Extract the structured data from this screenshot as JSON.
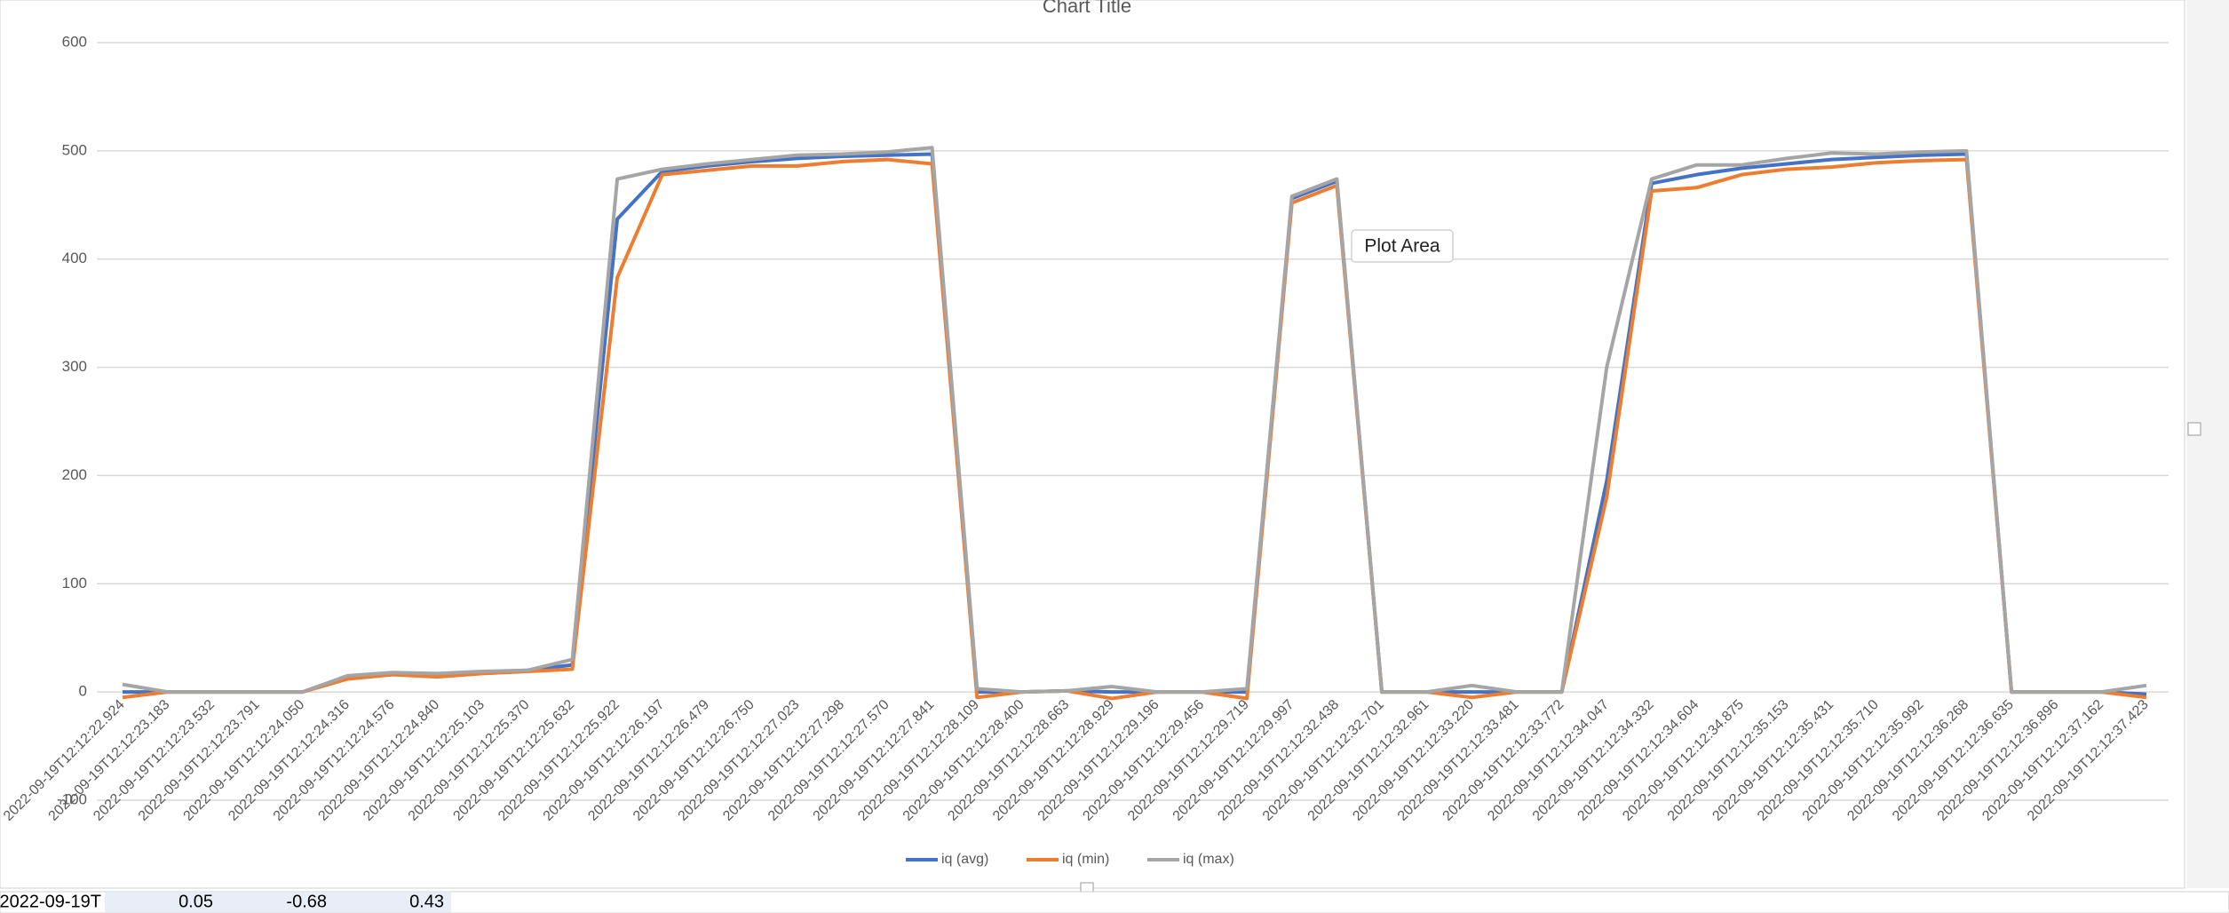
{
  "chart_data": {
    "type": "line",
    "title": "Chart Title",
    "categories": [
      "2022-09-19T12:12:22.924",
      "2022-09-19T12:12:23.183",
      "2022-09-19T12:12:23.532",
      "2022-09-19T12:12:23.791",
      "2022-09-19T12:12:24.050",
      "2022-09-19T12:12:24.316",
      "2022-09-19T12:12:24.576",
      "2022-09-19T12:12:24.840",
      "2022-09-19T12:12:25.103",
      "2022-09-19T12:12:25.370",
      "2022-09-19T12:12:25.632",
      "2022-09-19T12:12:25.922",
      "2022-09-19T12:12:26.197",
      "2022-09-19T12:12:26.479",
      "2022-09-19T12:12:26.750",
      "2022-09-19T12:12:27.023",
      "2022-09-19T12:12:27.298",
      "2022-09-19T12:12:27.570",
      "2022-09-19T12:12:27.841",
      "2022-09-19T12:12:28.109",
      "2022-09-19T12:12:28.400",
      "2022-09-19T12:12:28.663",
      "2022-09-19T12:12:28.929",
      "2022-09-19T12:12:29.196",
      "2022-09-19T12:12:29.456",
      "2022-09-19T12:12:29.719",
      "2022-09-19T12:12:29.997",
      "2022-09-19T12:12:32.438",
      "2022-09-19T12:12:32.701",
      "2022-09-19T12:12:32.961",
      "2022-09-19T12:12:33.220",
      "2022-09-19T12:12:33.481",
      "2022-09-19T12:12:33.772",
      "2022-09-19T12:12:34.047",
      "2022-09-19T12:12:34.332",
      "2022-09-19T12:12:34.604",
      "2022-09-19T12:12:34.875",
      "2022-09-19T12:12:35.153",
      "2022-09-19T12:12:35.431",
      "2022-09-19T12:12:35.710",
      "2022-09-19T12:12:35.992",
      "2022-09-19T12:12:36.268",
      "2022-09-19T12:12:36.635",
      "2022-09-19T12:12:36.896",
      "2022-09-19T12:12:37.162",
      "2022-09-19T12:12:37.423"
    ],
    "series": [
      {
        "name": "iq (avg)",
        "color": "#4472c4",
        "values": [
          0,
          0,
          0,
          0,
          0,
          14,
          17,
          16,
          18,
          20,
          25,
          437,
          481,
          486,
          490,
          493,
          495,
          496,
          497,
          0,
          0,
          1,
          0,
          0,
          0,
          0,
          456,
          472,
          0,
          0,
          0,
          0,
          0,
          195,
          470,
          478,
          484,
          488,
          492,
          494,
          496,
          497,
          0,
          0,
          0,
          -2
        ]
      },
      {
        "name": "iq (min)",
        "color": "#ed7d31",
        "values": [
          -5,
          0,
          0,
          0,
          0,
          12,
          16,
          14,
          17,
          19,
          21,
          383,
          478,
          482,
          486,
          486,
          490,
          492,
          488,
          -5,
          0,
          1,
          -6,
          0,
          0,
          -6,
          452,
          468,
          0,
          0,
          -5,
          0,
          0,
          180,
          463,
          466,
          478,
          483,
          485,
          489,
          491,
          492,
          0,
          0,
          0,
          -5
        ]
      },
      {
        "name": "iq (max)",
        "color": "#a5a5a5",
        "values": [
          7,
          0,
          0,
          0,
          0,
          15,
          18,
          17,
          19,
          20,
          30,
          474,
          483,
          488,
          492,
          496,
          497,
          499,
          503,
          3,
          0,
          1,
          5,
          0,
          0,
          3,
          458,
          474,
          0,
          0,
          6,
          0,
          0,
          300,
          474,
          487,
          487,
          493,
          498,
          497,
          499,
          500,
          0,
          0,
          0,
          6
        ]
      }
    ],
    "ylim": [
      -100,
      600
    ],
    "yticks": [
      -100,
      0,
      100,
      200,
      300,
      400,
      500,
      600
    ],
    "grid": true,
    "legend": "bottom"
  },
  "tooltip": "Plot Area",
  "cells": [
    "2022-09-19T",
    "0.05",
    "-0.68",
    "0.43"
  ]
}
